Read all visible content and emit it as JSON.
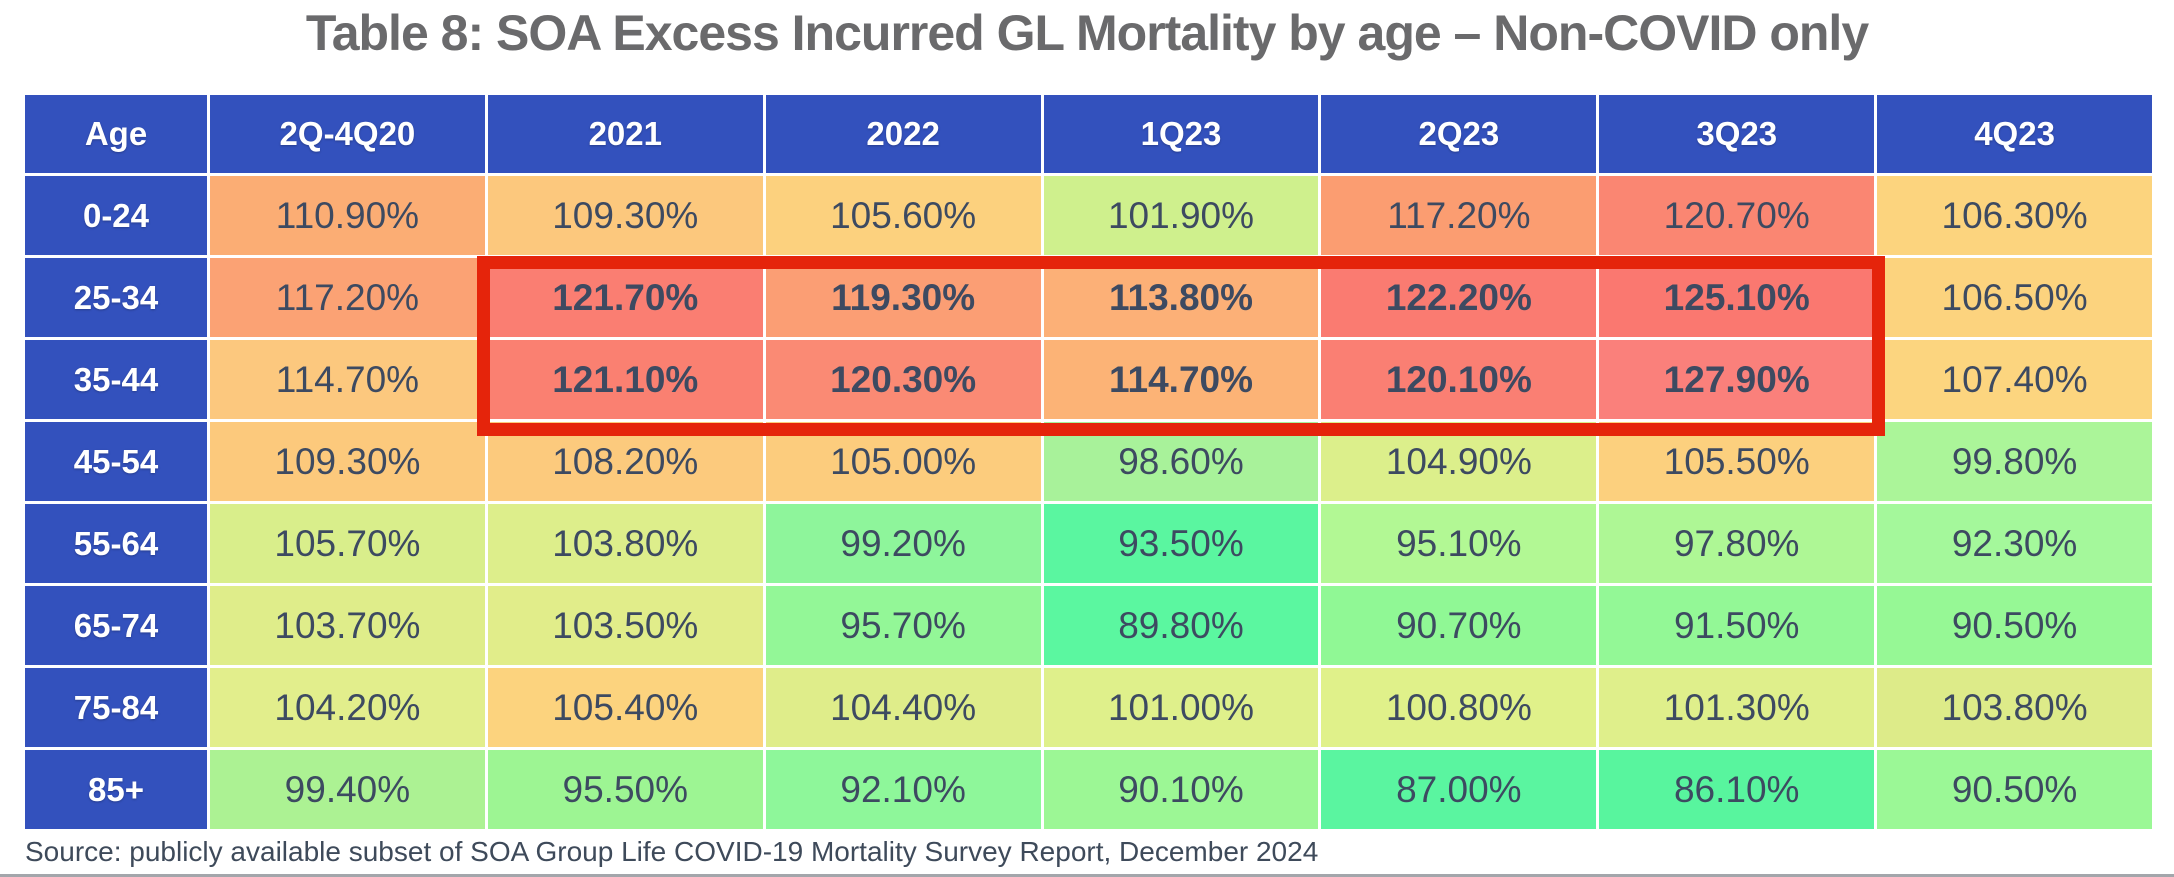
{
  "title": "Table 8: SOA Excess Incurred GL Mortality by age – Non-COVID only",
  "source": "Source: publicly available subset of SOA Group Life COVID-19 Mortality Survey Report, December 2024",
  "colors": {
    "header_bg": "#3351BD",
    "header_text": "#FFFFFF",
    "cell_text": "#3D4A61",
    "title_text": "#6A6A6C",
    "highlight_border": "#E5240B",
    "scale_low_green": "#58F59E",
    "scale_mid_yellow": "#E2EE8C",
    "scale_high_red": "#FA7E72"
  },
  "table": {
    "header": [
      "Age",
      "2Q-4Q20",
      "2021",
      "2022",
      "1Q23",
      "2Q23",
      "3Q23",
      "4Q23"
    ],
    "highlight": {
      "row_start": 1,
      "row_end": 2,
      "col_start": 1,
      "col_end": 5
    },
    "rows": [
      {
        "age": "0-24",
        "values": [
          "110.90%",
          "109.30%",
          "105.60%",
          "101.90%",
          "117.20%",
          "120.70%",
          "106.30%"
        ],
        "colors": [
          "#FBAD74",
          "#FCC87D",
          "#FCD17E",
          "#CFF08D",
          "#FB9D71",
          "#FA8672",
          "#FCD47E"
        ]
      },
      {
        "age": "25-34",
        "values": [
          "117.20%",
          "121.70%",
          "119.30%",
          "113.80%",
          "122.20%",
          "125.10%",
          "106.50%"
        ],
        "colors": [
          "#FBA274",
          "#FA7E72",
          "#FB9E74",
          "#FCB077",
          "#FA7B71",
          "#FA7870",
          "#FCD37E"
        ]
      },
      {
        "age": "35-44",
        "values": [
          "114.70%",
          "121.10%",
          "120.30%",
          "114.70%",
          "120.10%",
          "127.90%",
          "107.40%"
        ],
        "colors": [
          "#FCC87E",
          "#FA8071",
          "#FA8A74",
          "#FCB376",
          "#FA7F73",
          "#FA807B",
          "#FCD57F"
        ]
      },
      {
        "age": "45-54",
        "values": [
          "109.30%",
          "108.20%",
          "105.00%",
          "98.60%",
          "104.90%",
          "105.50%",
          "99.80%"
        ],
        "colors": [
          "#FCC97C",
          "#FCCA7D",
          "#FCCC7D",
          "#A8F29A",
          "#DCEF8B",
          "#FCD07E",
          "#ABF599"
        ]
      },
      {
        "age": "55-64",
        "values": [
          "105.70%",
          "103.80%",
          "99.20%",
          "93.50%",
          "95.10%",
          "97.80%",
          "92.30%"
        ],
        "colors": [
          "#D9EE8B",
          "#DDEE8B",
          "#8EF59B",
          "#5AF6A0",
          "#B2F894",
          "#AEF795",
          "#A4F89B"
        ]
      },
      {
        "age": "65-74",
        "values": [
          "103.70%",
          "103.50%",
          "95.70%",
          "89.80%",
          "90.70%",
          "91.50%",
          "90.50%"
        ],
        "colors": [
          "#DFED8A",
          "#E1ED8A",
          "#93F797",
          "#5BF7A0",
          "#90F895",
          "#93F896",
          "#96F895"
        ]
      },
      {
        "age": "75-84",
        "values": [
          "104.20%",
          "105.40%",
          "104.40%",
          "101.00%",
          "100.80%",
          "101.30%",
          "103.80%"
        ],
        "colors": [
          "#E2EE8C",
          "#FCD37E",
          "#DFED8A",
          "#DFF08B",
          "#E0F18A",
          "#DFEF8B",
          "#DDEB89"
        ]
      },
      {
        "age": "85+",
        "values": [
          "99.40%",
          "95.50%",
          "92.10%",
          "90.10%",
          "87.00%",
          "86.10%",
          "90.50%"
        ],
        "colors": [
          "#ACF293",
          "#9DF593",
          "#8EF79A",
          "#9CF795",
          "#5AF5A0",
          "#58F59E",
          "#9BF896"
        ]
      }
    ]
  },
  "chart_data": {
    "type": "heatmap",
    "title": "Table 8: SOA Excess Incurred GL Mortality by age – Non-COVID only",
    "unit": "percent",
    "row_axis_label": "Age",
    "columns": [
      "2Q-4Q20",
      "2021",
      "2022",
      "1Q23",
      "2Q23",
      "3Q23",
      "4Q23"
    ],
    "rows": [
      "0-24",
      "25-34",
      "35-44",
      "45-54",
      "55-64",
      "65-74",
      "75-84",
      "85+"
    ],
    "values": [
      [
        110.9,
        109.3,
        105.6,
        101.9,
        117.2,
        120.7,
        106.3
      ],
      [
        117.2,
        121.7,
        119.3,
        113.8,
        122.2,
        125.1,
        106.5
      ],
      [
        114.7,
        121.1,
        120.3,
        114.7,
        120.1,
        127.9,
        107.4
      ],
      [
        109.3,
        108.2,
        105.0,
        98.6,
        104.9,
        105.5,
        99.8
      ],
      [
        105.7,
        103.8,
        99.2,
        93.5,
        95.1,
        97.8,
        92.3
      ],
      [
        103.7,
        103.5,
        95.7,
        89.8,
        90.7,
        91.5,
        90.5
      ],
      [
        104.2,
        105.4,
        104.4,
        101.0,
        100.8,
        101.3,
        103.8
      ],
      [
        99.4,
        95.5,
        92.1,
        90.1,
        87.0,
        86.1,
        90.5
      ]
    ],
    "value_range": [
      86.1,
      127.9
    ],
    "color_coding": "green = low excess mortality, yellow = mid, red = high",
    "highlighted_region": {
      "rows": [
        "25-34",
        "35-44"
      ],
      "columns": [
        "2021",
        "2022",
        "1Q23",
        "2Q23",
        "3Q23"
      ],
      "style": "thick red rectangle outline"
    },
    "source_note": "Source: publicly available subset of SOA Group Life COVID-19 Mortality Survey Report, December 2024"
  }
}
